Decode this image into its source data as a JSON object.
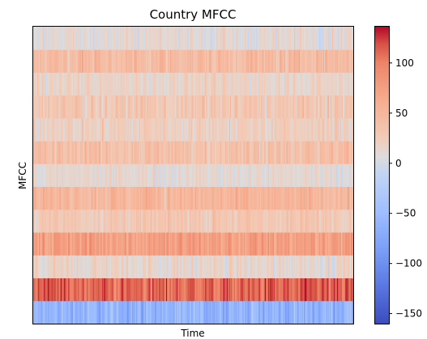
{
  "chart_data": {
    "type": "heatmap",
    "title": "Country MFCC",
    "xlabel": "Time",
    "ylabel": "MFCC",
    "n_coefficients": 13,
    "n_frames": 1293,
    "x_ticks_shown": false,
    "y_ticks_shown": false,
    "colormap": "coolwarm",
    "colorbar": {
      "vmin": -160,
      "vmax": 137,
      "ticks": [
        100,
        50,
        0,
        -50,
        -100,
        -150
      ],
      "tick_labels": [
        "100",
        "50",
        "0",
        "−50",
        "−100",
        "−150"
      ]
    },
    "row_mean_values": [
      -60,
      110,
      15,
      75,
      30,
      50,
      12,
      38,
      22,
      30,
      18,
      45,
      12
    ],
    "row_spread": [
      28,
      22,
      18,
      22,
      16,
      18,
      15,
      20,
      18,
      20,
      15,
      20,
      18
    ],
    "colors": {
      "cool_end": "#3b4cc0",
      "neutral": "#dddddd",
      "warm_end": "#b40426"
    }
  }
}
